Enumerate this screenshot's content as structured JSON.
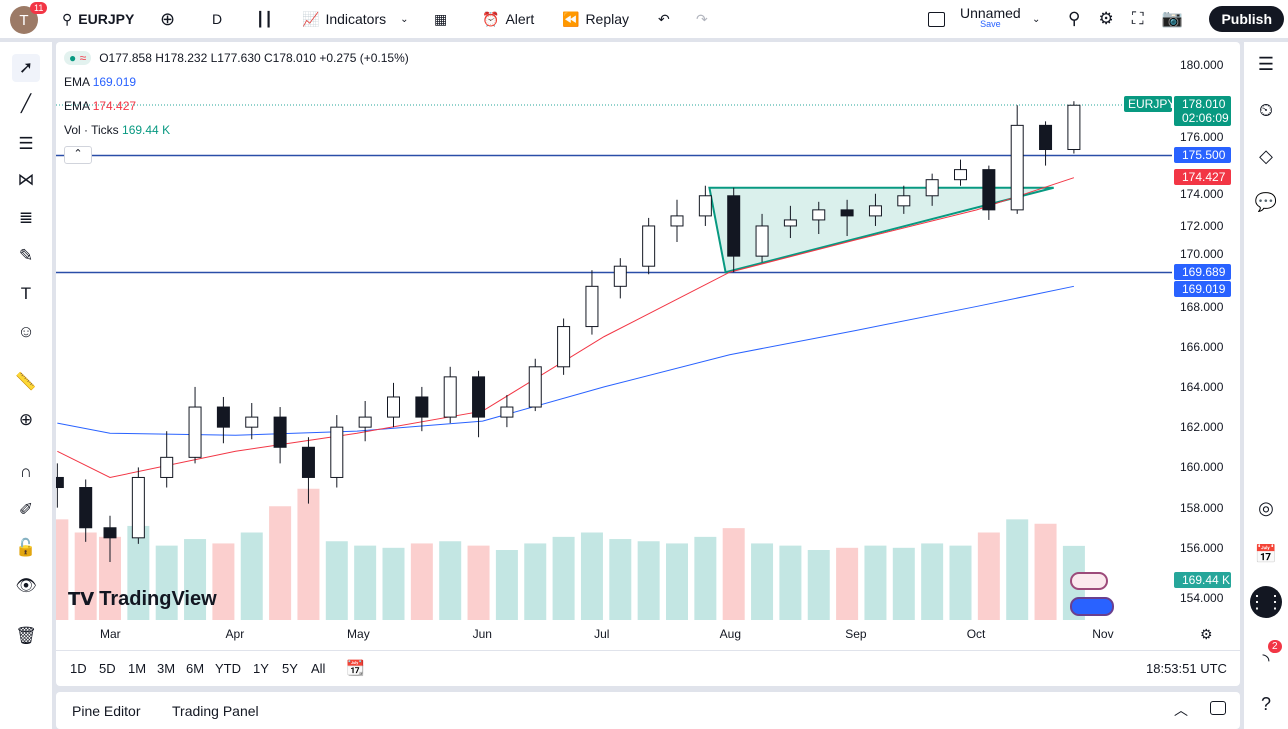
{
  "header": {
    "avatar_letter": "T",
    "notifications": "11",
    "symbol": "EURJPY",
    "interval": "D",
    "indicators": "Indicators",
    "alert": "Alert",
    "replay": "Replay",
    "layout_name": "Unnamed",
    "layout_sub": "Save",
    "publish": "Publish"
  },
  "legend": {
    "ohlc": "O177.858 H178.232 L177.630 C178.010 +0.275 (+0.15%)",
    "ema1_label": "EMA",
    "ema1_value": "169.019",
    "ema2_label": "EMA",
    "ema2_value": "174.427",
    "vol_label": "Vol · Ticks",
    "vol_value": "169.44 K"
  },
  "price_axis": {
    "ticks": [
      "180.000",
      "176.000",
      "174.000",
      "172.000",
      "170.000",
      "168.000",
      "166.000",
      "164.000",
      "162.000",
      "160.000",
      "158.000",
      "156.000",
      "154.000"
    ],
    "tags": {
      "symbol": "EURJPY",
      "last": "178.010",
      "countdown": "02:06:09",
      "hline1": "175.500",
      "ema_red": "174.427",
      "hline2": "169.689",
      "ema_blue": "169.019",
      "volume": "169.44 K"
    }
  },
  "time_axis": [
    "Mar",
    "Apr",
    "May",
    "Jun",
    "Jul",
    "Aug",
    "Sep",
    "Oct",
    "Nov"
  ],
  "ranges": [
    "1D",
    "5D",
    "1M",
    "3M",
    "6M",
    "YTD",
    "1Y",
    "5Y",
    "All"
  ],
  "clock": "18:53:51 UTC",
  "bottom": {
    "pine": "Pine Editor",
    "trading": "Trading Panel"
  },
  "watermark": "TradingView",
  "right_badge": "2",
  "colors": {
    "up": "#26a69a",
    "down": "#ef5350",
    "ema_blue": "#2962ff",
    "ema_red": "#f23645",
    "hline": "#2a4ea8",
    "triangle": "#089981"
  },
  "chart_data": {
    "type": "candlestick",
    "symbol": "EURJPY",
    "interval": "weekly-approx",
    "candles": [
      [
        "02-16",
        159.5,
        160.2,
        158.0,
        159.0
      ],
      [
        "02-23",
        159.0,
        159.4,
        156.3,
        157.0
      ],
      [
        "03-01",
        157.0,
        157.6,
        155.3,
        156.5
      ],
      [
        "03-08",
        156.5,
        160.0,
        156.2,
        159.5
      ],
      [
        "03-15",
        159.5,
        161.8,
        159.0,
        160.5
      ],
      [
        "03-22",
        160.5,
        164.0,
        160.2,
        163.0
      ],
      [
        "03-29",
        163.0,
        163.5,
        161.2,
        162.0
      ],
      [
        "04-05",
        162.0,
        163.2,
        161.4,
        162.5
      ],
      [
        "04-12",
        162.5,
        163.0,
        160.2,
        161.0
      ],
      [
        "04-19",
        161.0,
        161.5,
        158.2,
        159.5
      ],
      [
        "04-26",
        159.5,
        162.6,
        159.0,
        162.0
      ],
      [
        "05-03",
        162.0,
        163.3,
        161.3,
        162.5
      ],
      [
        "05-10",
        162.5,
        164.2,
        162.0,
        163.5
      ],
      [
        "05-17",
        163.5,
        164.0,
        161.8,
        162.5
      ],
      [
        "05-24",
        162.5,
        165.0,
        162.2,
        164.5
      ],
      [
        "05-31",
        164.5,
        164.8,
        161.5,
        162.5
      ],
      [
        "06-07",
        162.5,
        163.6,
        162.0,
        163.0
      ],
      [
        "06-14",
        163.0,
        165.4,
        162.8,
        165.0
      ],
      [
        "06-21",
        165.0,
        167.4,
        164.6,
        167.0
      ],
      [
        "06-28",
        167.0,
        169.8,
        166.6,
        169.0
      ],
      [
        "07-05",
        169.0,
        170.4,
        168.4,
        170.0
      ],
      [
        "07-12",
        170.0,
        172.4,
        169.6,
        172.0
      ],
      [
        "07-19",
        172.0,
        173.3,
        171.2,
        172.5
      ],
      [
        "07-26",
        172.5,
        174.0,
        172.0,
        173.5
      ],
      [
        "08-02",
        173.5,
        173.9,
        169.7,
        170.5
      ],
      [
        "08-09",
        170.5,
        172.6,
        170.2,
        172.0
      ],
      [
        "08-16",
        172.0,
        173.0,
        171.4,
        172.3
      ],
      [
        "08-23",
        172.3,
        173.2,
        171.6,
        172.8
      ],
      [
        "08-30",
        172.8,
        173.3,
        171.5,
        172.5
      ],
      [
        "09-06",
        172.5,
        173.6,
        172.0,
        173.0
      ],
      [
        "09-13",
        173.0,
        174.0,
        172.6,
        173.5
      ],
      [
        "09-20",
        173.5,
        174.6,
        173.0,
        174.3
      ],
      [
        "09-27",
        174.3,
        175.3,
        174.0,
        174.8
      ],
      [
        "10-04",
        174.8,
        175.0,
        172.3,
        172.8
      ],
      [
        "10-11",
        172.8,
        178.0,
        172.6,
        177.0
      ],
      [
        "10-18",
        177.0,
        177.2,
        175.0,
        175.8
      ],
      [
        "10-25",
        175.8,
        178.2,
        175.6,
        178.0
      ]
    ],
    "volume_k": [
      230,
      200,
      190,
      215,
      170,
      185,
      175,
      200,
      260,
      300,
      180,
      170,
      165,
      175,
      180,
      170,
      160,
      175,
      190,
      200,
      185,
      180,
      175,
      190,
      210,
      175,
      170,
      160,
      165,
      170,
      165,
      175,
      170,
      200,
      230,
      220,
      169.44
    ],
    "ema_blue": [
      [
        "02-16",
        162.2
      ],
      [
        "03-01",
        161.7
      ],
      [
        "04-01",
        161.6
      ],
      [
        "05-01",
        161.8
      ],
      [
        "06-01",
        162.3
      ],
      [
        "07-01",
        164.0
      ],
      [
        "08-01",
        165.6
      ],
      [
        "09-01",
        166.8
      ],
      [
        "10-01",
        168.0
      ],
      [
        "10-25",
        169.0
      ]
    ],
    "ema_red": [
      [
        "02-16",
        160.8
      ],
      [
        "03-01",
        159.5
      ],
      [
        "04-01",
        160.8
      ],
      [
        "05-01",
        161.7
      ],
      [
        "06-01",
        162.8
      ],
      [
        "07-01",
        166.5
      ],
      [
        "08-01",
        169.7
      ],
      [
        "09-01",
        171.3
      ],
      [
        "10-01",
        172.8
      ],
      [
        "10-25",
        174.4
      ]
    ],
    "horizontal_lines": [
      175.5,
      169.689
    ],
    "triangle": [
      [
        "07-27",
        173.9
      ],
      [
        "10-20",
        173.9
      ],
      [
        "07-31",
        169.7
      ]
    ],
    "ylim": [
      153.5,
      181
    ]
  }
}
